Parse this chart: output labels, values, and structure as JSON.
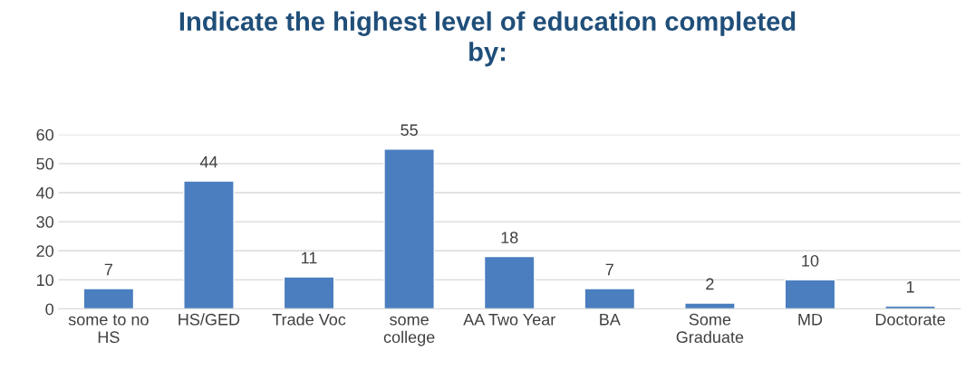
{
  "chart_data": {
    "type": "bar",
    "title": "Indicate the highest level of education completed by:",
    "categories": [
      "some to no HS",
      "HS/GED",
      "Trade Voc",
      "some college",
      "AA Two Year",
      "BA",
      "Some Graduate",
      "MD",
      "Doctorate"
    ],
    "values": [
      7,
      44,
      11,
      55,
      18,
      7,
      2,
      10,
      1
    ],
    "color": "#4a7ebf",
    "ylim": [
      0,
      60
    ],
    "yticks": [
      0,
      10,
      20,
      30,
      40,
      50,
      60
    ],
    "grid": "y",
    "data_labels": true
  }
}
